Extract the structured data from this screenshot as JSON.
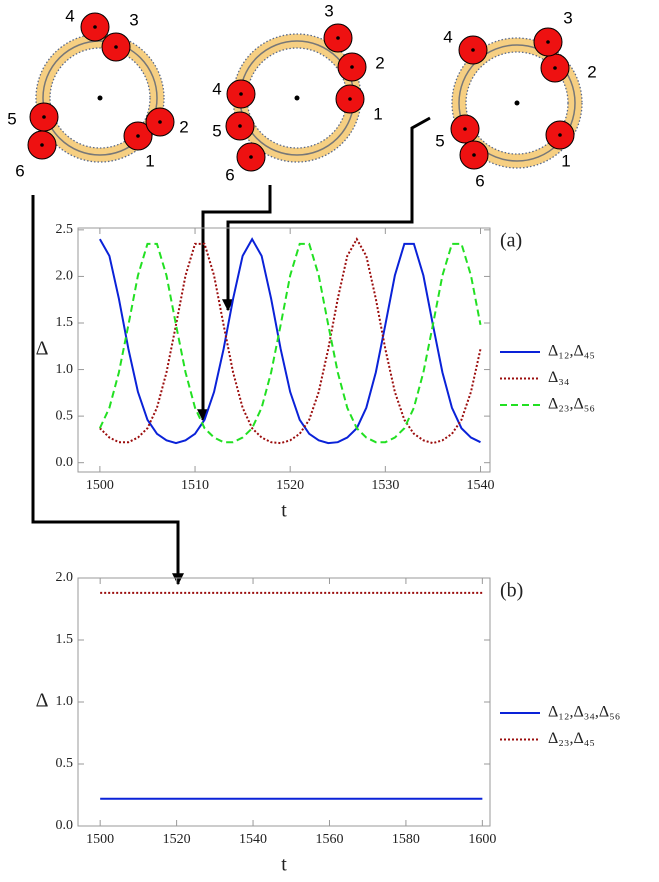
{
  "chart_data": [
    {
      "type": "line",
      "annotation": "(a)",
      "ylabel": "Δ",
      "xlabel": "t",
      "x": [
        1500,
        1501,
        1502,
        1503,
        1504,
        1505,
        1506,
        1507,
        1508,
        1509,
        1510,
        1511,
        1512,
        1513,
        1514,
        1515,
        1516,
        1517,
        1518,
        1519,
        1520,
        1521,
        1522,
        1523,
        1524,
        1525,
        1526,
        1527,
        1528,
        1529,
        1530,
        1531,
        1532,
        1533,
        1534,
        1535,
        1536,
        1537,
        1538,
        1539,
        1540
      ],
      "series": [
        {
          "name": "Δ₁₂,Δ₄₅",
          "color": "#0a22d8",
          "style": "solid",
          "values": [
            2.4,
            2.22,
            1.76,
            1.22,
            0.76,
            0.46,
            0.31,
            0.24,
            0.21,
            0.24,
            0.31,
            0.46,
            0.76,
            1.22,
            1.76,
            2.22,
            2.4,
            2.22,
            1.76,
            1.22,
            0.76,
            0.46,
            0.31,
            0.24,
            0.21,
            0.22,
            0.27,
            0.37,
            0.59,
            0.97,
            1.48,
            2.01,
            2.35,
            2.35,
            2.01,
            1.48,
            0.97,
            0.59,
            0.37,
            0.27,
            0.22
          ]
        },
        {
          "name": "Δ₃₄",
          "color": "#9b0d0d",
          "style": "dotted",
          "values": [
            0.37,
            0.27,
            0.22,
            0.22,
            0.27,
            0.37,
            0.59,
            0.97,
            1.48,
            2.01,
            2.35,
            2.35,
            2.01,
            1.48,
            0.97,
            0.59,
            0.37,
            0.27,
            0.22,
            0.21,
            0.24,
            0.31,
            0.46,
            0.76,
            1.22,
            1.76,
            2.22,
            2.4,
            2.22,
            1.76,
            1.22,
            0.76,
            0.46,
            0.31,
            0.24,
            0.21,
            0.24,
            0.31,
            0.46,
            0.76,
            1.22
          ]
        },
        {
          "name": "Δ₂₃,Δ₅₆",
          "color": "#22e022",
          "style": "dashed",
          "values": [
            0.37,
            0.59,
            0.97,
            1.48,
            2.01,
            2.35,
            2.35,
            2.01,
            1.48,
            0.97,
            0.59,
            0.37,
            0.27,
            0.22,
            0.22,
            0.27,
            0.37,
            0.59,
            0.97,
            1.48,
            2.01,
            2.35,
            2.35,
            2.01,
            1.48,
            0.97,
            0.59,
            0.37,
            0.27,
            0.22,
            0.22,
            0.27,
            0.37,
            0.59,
            0.97,
            1.48,
            2.01,
            2.35,
            2.35,
            2.01,
            1.48
          ]
        }
      ],
      "xlim": [
        1497.7,
        1541
      ],
      "ylim": [
        -0.1,
        2.52
      ],
      "xticks": [
        1500,
        1510,
        1520,
        1530,
        1540
      ],
      "yticks": [
        {
          "value": 0,
          "label": "0.0"
        },
        {
          "value": 0.5,
          "label": "0.5"
        },
        {
          "value": 1,
          "label": "1.0"
        },
        {
          "value": 1.5,
          "label": "1.5"
        },
        {
          "value": 2,
          "label": "2.0"
        },
        {
          "value": 2.5,
          "label": "2.5"
        }
      ]
    },
    {
      "type": "line",
      "annotation": "(b)",
      "ylabel": "Δ",
      "xlabel": "t",
      "x": [
        1500,
        1600
      ],
      "series": [
        {
          "name": "Δ₁₂,Δ₃₄,Δ₅₆",
          "color": "#0a22d8",
          "style": "solid",
          "values": [
            0.22,
            0.22
          ]
        },
        {
          "name": "Δ₂₃,Δ₄₅",
          "color": "#9b0d0d",
          "style": "dotted",
          "values": [
            1.88,
            1.88
          ]
        }
      ],
      "xlim": [
        1494.2,
        1602
      ],
      "ylim": [
        0,
        2
      ],
      "xticks": [
        1500,
        1520,
        1540,
        1560,
        1580,
        1600
      ],
      "yticks": [
        {
          "value": 0,
          "label": "0.0"
        },
        {
          "value": 0.5,
          "label": "0.5"
        },
        {
          "value": 1,
          "label": "1.0"
        },
        {
          "value": 1.5,
          "label": "1.5"
        },
        {
          "value": 2,
          "label": "2.0"
        }
      ]
    }
  ],
  "diagrams": [
    {
      "labels": [
        "1",
        "2",
        "3",
        "4",
        "5",
        "6"
      ]
    },
    {
      "labels": [
        "1",
        "2",
        "3",
        "4",
        "5",
        "6"
      ]
    },
    {
      "labels": [
        "1",
        "2",
        "3",
        "4",
        "5",
        "6"
      ]
    }
  ]
}
